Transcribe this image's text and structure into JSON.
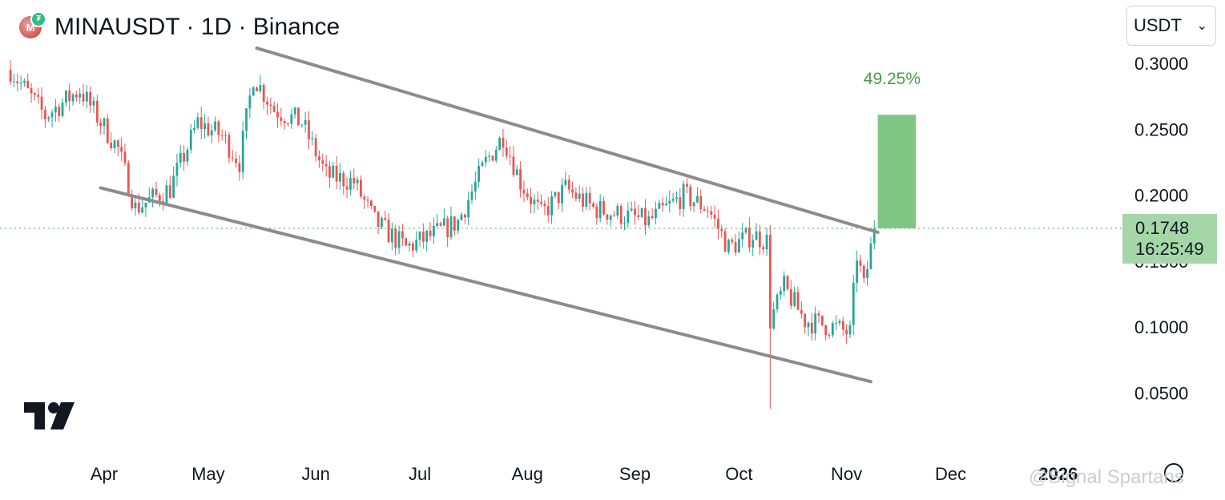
{
  "header": {
    "title": "MINAUSDT · 1D · Binance",
    "logo_icon": "mina-coin-icon"
  },
  "currency_select": {
    "value": "USDT"
  },
  "chart_data": {
    "type": "candlestick",
    "title": "MINAUSDT · 1D · Binance",
    "y_ticks": [
      "0.3000",
      "0.2500",
      "0.2000",
      "0.1500",
      "0.1000",
      "0.0500"
    ],
    "y_tick_values": [
      0.3,
      0.25,
      0.2,
      0.15,
      0.1,
      0.05
    ],
    "ylim": [
      0.0,
      0.31
    ],
    "x_ticks": [
      "Apr",
      "May",
      "Jun",
      "Jul",
      "Aug",
      "Sep",
      "Oct",
      "Nov",
      "Dec",
      "2026"
    ],
    "x_tick_dates": [
      "2025-04-01",
      "2025-05-01",
      "2025-06-01",
      "2025-07-01",
      "2025-08-01",
      "2025-09-01",
      "2025-10-01",
      "2025-11-01",
      "2025-12-01",
      "2026-01-01"
    ],
    "x_range": [
      "2025-03-05",
      "2026-01-15"
    ],
    "series": [
      {
        "date": "2025-03-05",
        "close": 0.295
      },
      {
        "date": "2025-03-15",
        "close": 0.26
      },
      {
        "date": "2025-03-25",
        "close": 0.28
      },
      {
        "date": "2025-04-05",
        "close": 0.235
      },
      {
        "date": "2025-04-10",
        "close": 0.19
      },
      {
        "date": "2025-04-20",
        "close": 0.205
      },
      {
        "date": "2025-04-28",
        "close": 0.255
      },
      {
        "date": "2025-05-05",
        "close": 0.245
      },
      {
        "date": "2025-05-10",
        "close": 0.225
      },
      {
        "date": "2025-05-14",
        "close": 0.29
      },
      {
        "date": "2025-05-20",
        "close": 0.265
      },
      {
        "date": "2025-05-28",
        "close": 0.255
      },
      {
        "date": "2025-06-04",
        "close": 0.215
      },
      {
        "date": "2025-06-12",
        "close": 0.21
      },
      {
        "date": "2025-06-18",
        "close": 0.18
      },
      {
        "date": "2025-06-27",
        "close": 0.16
      },
      {
        "date": "2025-07-05",
        "close": 0.17
      },
      {
        "date": "2025-07-12",
        "close": 0.18
      },
      {
        "date": "2025-07-20",
        "close": 0.225
      },
      {
        "date": "2025-07-25",
        "close": 0.245
      },
      {
        "date": "2025-07-30",
        "close": 0.21
      },
      {
        "date": "2025-08-05",
        "close": 0.185
      },
      {
        "date": "2025-08-12",
        "close": 0.205
      },
      {
        "date": "2025-08-20",
        "close": 0.19
      },
      {
        "date": "2025-08-28",
        "close": 0.185
      },
      {
        "date": "2025-09-05",
        "close": 0.18
      },
      {
        "date": "2025-09-15",
        "close": 0.2
      },
      {
        "date": "2025-09-22",
        "close": 0.19
      },
      {
        "date": "2025-09-28",
        "close": 0.16
      },
      {
        "date": "2025-10-05",
        "close": 0.17
      },
      {
        "date": "2025-10-09",
        "close": 0.165
      },
      {
        "date": "2025-10-10",
        "low": 0.038,
        "close": 0.105
      },
      {
        "date": "2025-10-14",
        "close": 0.13
      },
      {
        "date": "2025-10-20",
        "close": 0.105
      },
      {
        "date": "2025-10-28",
        "close": 0.1
      },
      {
        "date": "2025-11-02",
        "close": 0.095
      },
      {
        "date": "2025-11-04",
        "close": 0.155
      },
      {
        "date": "2025-11-06",
        "close": 0.13
      },
      {
        "date": "2025-11-09",
        "close": 0.1748
      }
    ],
    "up_color": "#26a69a",
    "down_color": "#ef5350",
    "channel_color": "#8c8c8c",
    "current_price": "0.1748",
    "countdown": "16:25:49",
    "target": {
      "label": "49.25%",
      "from": 0.1748,
      "to": 0.261,
      "color": "#81c784"
    },
    "channel": {
      "upper": [
        [
          "2025-05-15",
          0.3115
        ],
        [
          "2025-11-10",
          0.1718
        ]
      ],
      "lower": [
        [
          "2025-03-31",
          0.2055
        ],
        [
          "2025-11-08",
          0.0585
        ]
      ]
    },
    "grid": false
  },
  "watermark": {
    "text": "@Signal Spartans"
  }
}
